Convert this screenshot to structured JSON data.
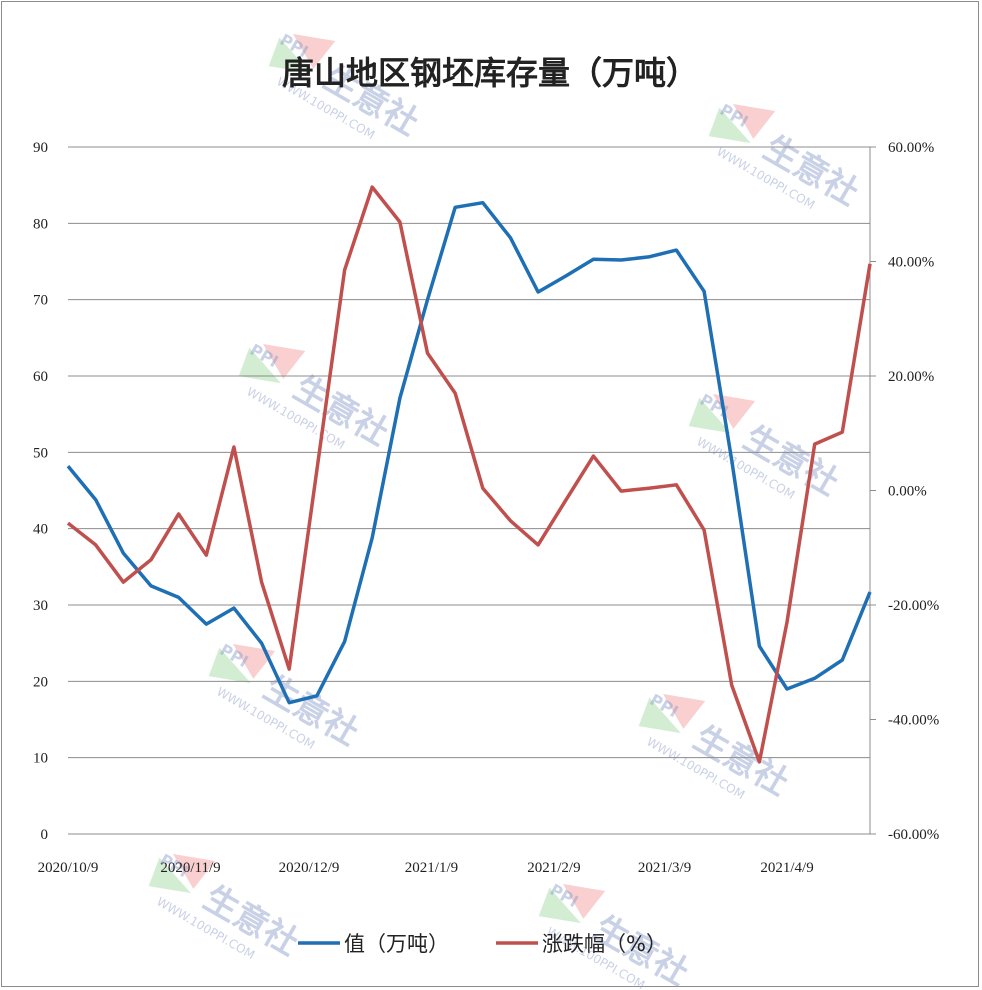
{
  "chart_data": {
    "type": "line",
    "title": "唐山地区钢坯库存量（万吨）",
    "x": [
      "2020/10/9",
      "2020/10/16",
      "2020/10/23",
      "2020/10/30",
      "2020/11/6",
      "2020/11/13",
      "2020/11/20",
      "2020/11/27",
      "2020/12/4",
      "2020/12/11",
      "2020/12/18",
      "2020/12/25",
      "2021/1/1",
      "2021/1/8",
      "2021/1/15",
      "2021/1/22",
      "2021/1/29",
      "2021/2/5",
      "2021/2/12",
      "2021/2/19",
      "2021/2/26",
      "2021/3/5",
      "2021/3/12",
      "2021/3/19",
      "2021/3/26",
      "2021/4/2",
      "2021/4/9",
      "2021/4/16",
      "2021/4/23",
      "2021/4/30"
    ],
    "x_tick_labels": [
      "2020/10/9",
      "2020/11/9",
      "2020/12/9",
      "2021/1/9",
      "2021/2/9",
      "2021/3/9",
      "2021/4/9"
    ],
    "y_left": {
      "range": [
        0,
        90
      ],
      "ticks": [
        "0",
        "10",
        "20",
        "30",
        "40",
        "50",
        "60",
        "70",
        "80",
        "90"
      ]
    },
    "y_right": {
      "range": [
        -60,
        60
      ],
      "ticks": [
        "-60.00%",
        "-40.00%",
        "-20.00%",
        "0.00%",
        "20.00%",
        "40.00%",
        "60.00%"
      ]
    },
    "grid": true,
    "legend_position": "bottom",
    "series": [
      {
        "name": "值（万吨）",
        "axis": "left",
        "color": "#1f6fb4",
        "values": [
          48.2,
          43.8,
          36.8,
          32.5,
          31.0,
          27.5,
          29.6,
          25.0,
          17.2,
          18.1,
          25.2,
          38.8,
          57.1,
          70.0,
          82.1,
          82.7,
          78.1,
          71.0,
          73.1,
          75.3,
          75.2,
          75.6,
          76.5,
          71.1,
          49.0,
          24.6,
          19.0,
          20.4,
          22.8,
          31.7
        ]
      },
      {
        "name": "涨跌幅（%）",
        "axis": "right",
        "color": "#c0504d",
        "values": [
          -5.7,
          -9.5,
          -16.0,
          -12.1,
          -4.1,
          -11.3,
          7.6,
          -16.0,
          -31.2,
          3.6,
          38.5,
          53.0,
          46.9,
          24.0,
          17.0,
          0.4,
          -5.3,
          -9.5,
          -1.7,
          6.0,
          -0.1,
          0.4,
          1.0,
          -6.9,
          -34.0,
          -47.4,
          -23.0,
          8.1,
          10.2,
          39.6
        ]
      }
    ]
  },
  "watermark": {
    "brand": "生意社",
    "logo": "PPI",
    "url": "WWW.100PPI.COM"
  }
}
